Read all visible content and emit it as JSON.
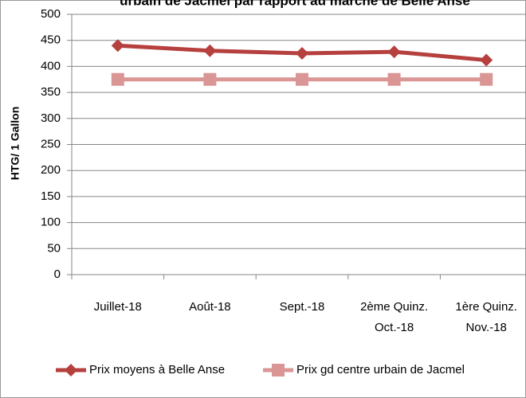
{
  "chart_data": {
    "type": "line",
    "title": "urbain de Jacmel par rapport au marché de Belle Anse",
    "y_label": "HTG/ 1 Gallon",
    "categories": [
      "Juillet-18",
      "Août-18",
      "Sept.-18",
      "2ème  Quinz.\nOct.-18",
      "1ère  Quinz.\nNov.-18"
    ],
    "series": [
      {
        "name": "Prix moyens à Belle Anse",
        "color": "#b5403e",
        "marker": "diamond",
        "values": [
          440,
          430,
          425,
          428,
          412
        ]
      },
      {
        "name": "Prix gd centre urbain de Jacmel",
        "color": "#d99694",
        "marker": "square",
        "values": [
          375,
          375,
          375,
          375,
          375
        ]
      }
    ],
    "ylim": [
      0,
      500
    ],
    "yticks": [
      0,
      50,
      100,
      150,
      200,
      250,
      300,
      350,
      400,
      450,
      500
    ],
    "grid": true,
    "legend": "bottom"
  }
}
